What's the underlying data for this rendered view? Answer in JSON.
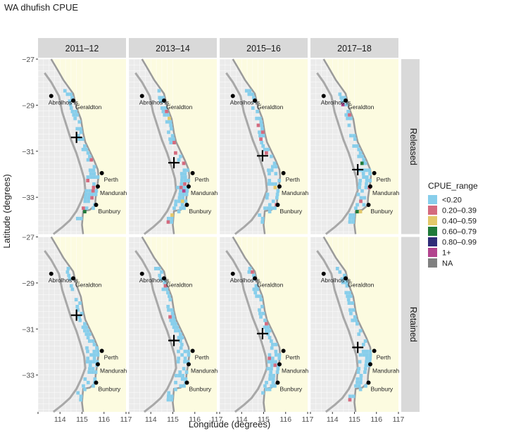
{
  "chart_data": {
    "type": "heatmap",
    "title": "WA dhufish CPUE",
    "xlabel": "Longitude (degrees)",
    "ylabel": "Latitude (degrees)",
    "xlim": [
      113,
      117
    ],
    "ylim": [
      -34.6,
      -27
    ],
    "x_ticks": [
      "114",
      "115",
      "116",
      "117"
    ],
    "y_ticks": [
      "-27",
      "-29",
      "-31",
      "-33"
    ],
    "columns": [
      "2011–12",
      "2013–14",
      "2015–16",
      "2017–18"
    ],
    "rows": [
      "Released",
      "Retained"
    ],
    "legend": {
      "title": "CPUE_range",
      "position": "right",
      "entries": [
        {
          "label": "<0.20",
          "color": "#87ceeb"
        },
        {
          "label": "0.20–0.39",
          "color": "#d46a7e"
        },
        {
          "label": "0.40–0.59",
          "color": "#e3c86a"
        },
        {
          "label": "0.60–0.79",
          "color": "#1f7a3a"
        },
        {
          "label": "0.80–0.99",
          "color": "#2f2c78"
        },
        {
          "label": "1+",
          "color": "#b2448e"
        },
        {
          "label": "NA",
          "color": "#808080"
        }
      ]
    },
    "cities": [
      {
        "name": "Abrolhos Is.",
        "lon": 113.6,
        "lat": -28.6
      },
      {
        "name": "Geraldton",
        "lon": 114.6,
        "lat": -28.8
      },
      {
        "name": "Perth",
        "lon": 115.9,
        "lat": -31.95
      },
      {
        "name": "Mandurah",
        "lon": 115.72,
        "lat": -32.53
      },
      {
        "name": "Bunbury",
        "lon": 115.64,
        "lat": -33.33
      }
    ],
    "centroids": {
      "Released": [
        {
          "lon": 114.75,
          "lat": -30.4
        },
        {
          "lon": 115.05,
          "lat": -31.5
        },
        {
          "lon": 114.95,
          "lat": -31.2
        },
        {
          "lon": 115.15,
          "lat": -31.8
        }
      ],
      "Retained": [
        {
          "lon": 114.75,
          "lat": -30.4
        },
        {
          "lon": 115.05,
          "lat": -31.5
        },
        {
          "lon": 114.95,
          "lat": -31.2
        },
        {
          "lon": 115.15,
          "lat": -31.8
        }
      ]
    },
    "grid": true
  }
}
